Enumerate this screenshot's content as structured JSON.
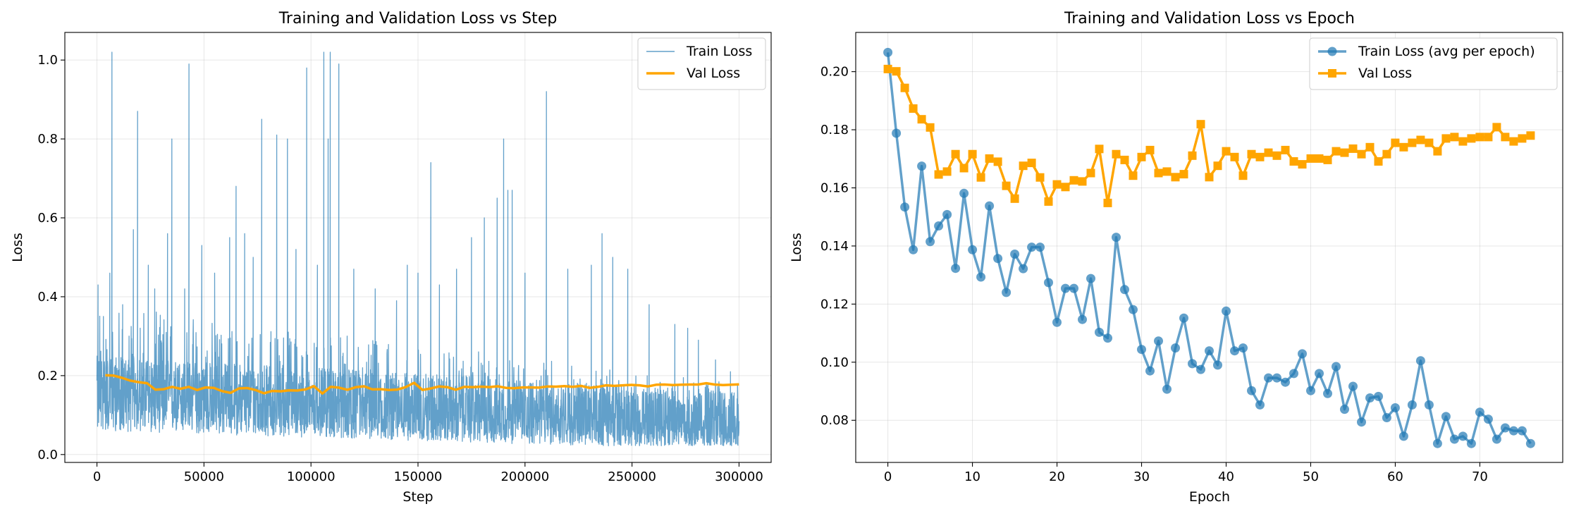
{
  "chart_data": [
    {
      "type": "line",
      "title": "Training and Validation Loss vs Step",
      "xlabel": "Step",
      "ylabel": "Loss",
      "xlim": [
        -15000,
        315000
      ],
      "ylim": [
        -0.02,
        1.07
      ],
      "xticks": [
        0,
        50000,
        100000,
        150000,
        200000,
        250000,
        300000
      ],
      "xtick_labels": [
        "0",
        "50000",
        "100000",
        "150000",
        "200000",
        "250000",
        "300000"
      ],
      "yticks": [
        0.0,
        0.2,
        0.4,
        0.6,
        0.8,
        1.0
      ],
      "ytick_labels": [
        "0.0",
        "0.2",
        "0.4",
        "0.6",
        "0.8",
        "1.0"
      ],
      "grid": true,
      "legend_position": "upper-right",
      "series": [
        {
          "name": "Train Loss",
          "color": "#1f77b4",
          "description": "noisy per-step training loss from step 0 to 300000, baseline decreasing from ~0.15 to ~0.07",
          "spikes": [
            [
              500,
              0.43
            ],
            [
              3000,
              0.35
            ],
            [
              6000,
              0.46
            ],
            [
              7000,
              1.02
            ],
            [
              12000,
              0.38
            ],
            [
              17000,
              0.57
            ],
            [
              19000,
              0.87
            ],
            [
              24000,
              0.48
            ],
            [
              27000,
              0.42
            ],
            [
              33000,
              0.56
            ],
            [
              35000,
              0.8
            ],
            [
              41000,
              0.42
            ],
            [
              43000,
              0.99
            ],
            [
              49000,
              0.53
            ],
            [
              55000,
              0.46
            ],
            [
              62000,
              0.55
            ],
            [
              65000,
              0.68
            ],
            [
              69000,
              0.56
            ],
            [
              73000,
              0.5
            ],
            [
              77000,
              0.85
            ],
            [
              84000,
              0.81
            ],
            [
              89000,
              0.8
            ],
            [
              93000,
              0.52
            ],
            [
              98000,
              0.98
            ],
            [
              103000,
              0.48
            ],
            [
              106000,
              1.02
            ],
            [
              108000,
              0.8
            ],
            [
              109000,
              1.02
            ],
            [
              113000,
              0.99
            ],
            [
              120000,
              0.47
            ],
            [
              130000,
              0.42
            ],
            [
              140000,
              0.39
            ],
            [
              145000,
              0.48
            ],
            [
              150000,
              0.46
            ],
            [
              156000,
              0.74
            ],
            [
              160000,
              0.43
            ],
            [
              168000,
              0.47
            ],
            [
              175000,
              0.55
            ],
            [
              181000,
              0.6
            ],
            [
              187000,
              0.65
            ],
            [
              190000,
              0.8
            ],
            [
              192000,
              0.67
            ],
            [
              194000,
              0.67
            ],
            [
              200000,
              0.46
            ],
            [
              210000,
              0.92
            ],
            [
              220000,
              0.47
            ],
            [
              231000,
              0.48
            ],
            [
              236000,
              0.56
            ],
            [
              241000,
              0.5
            ],
            [
              248000,
              0.47
            ],
            [
              258000,
              0.38
            ],
            [
              270000,
              0.33
            ],
            [
              276000,
              0.32
            ],
            [
              281000,
              0.29
            ],
            [
              289000,
              0.24
            ],
            [
              296000,
              0.21
            ]
          ]
        },
        {
          "name": "Val Loss",
          "color": "#ffa500",
          "x": [
            3900,
            7800,
            11700,
            15600,
            19500,
            23400,
            27300,
            31200,
            35100,
            39000,
            42900,
            46800,
            50700,
            54600,
            58500,
            62400,
            66300,
            70200,
            74100,
            78000,
            81900,
            85800,
            89700,
            93600,
            97500,
            101400,
            105300,
            109200,
            113100,
            117000,
            120900,
            124800,
            128700,
            132600,
            136500,
            140400,
            144300,
            148200,
            152100,
            156000,
            159900,
            163800,
            167700,
            171600,
            175500,
            179400,
            183300,
            187200,
            191100,
            195000,
            198900,
            202800,
            206700,
            210600,
            214500,
            218400,
            222300,
            226200,
            230100,
            234000,
            237900,
            241800,
            245700,
            249600,
            253500,
            257400,
            261300,
            265200,
            269100,
            273000,
            276900,
            280800,
            284700,
            288600,
            292500,
            296400,
            300000
          ],
          "y": [
            0.2009,
            0.2001,
            0.1944,
            0.1873,
            0.1836,
            0.1808,
            0.1646,
            0.1656,
            0.1716,
            0.1668,
            0.1716,
            0.1636,
            0.1701,
            0.169,
            0.1607,
            0.1563,
            0.1676,
            0.1686,
            0.1636,
            0.1553,
            0.1612,
            0.1603,
            0.1626,
            0.1622,
            0.1651,
            0.1734,
            0.1548,
            0.1716,
            0.1696,
            0.1642,
            0.1706,
            0.173,
            0.1651,
            0.1656,
            0.1637,
            0.1647,
            0.1711,
            0.1819,
            0.1637,
            0.1676,
            0.1726,
            0.1706,
            0.1642,
            0.1716,
            0.1706,
            0.1721,
            0.1711,
            0.173,
            0.1691,
            0.1681,
            0.1701,
            0.1701,
            0.1696,
            0.1726,
            0.1721,
            0.1735,
            0.1716,
            0.174,
            0.1691,
            0.1716,
            0.1755,
            0.174,
            0.1755,
            0.1765,
            0.1755,
            0.1726,
            0.177,
            0.1775,
            0.176,
            0.177,
            0.1775,
            0.1775,
            0.1809,
            0.1775,
            0.176,
            0.177,
            0.178
          ]
        }
      ]
    },
    {
      "type": "line",
      "title": "Training and Validation Loss vs Epoch",
      "xlabel": "Epoch",
      "ylabel": "Loss",
      "xlim": [
        -3.8,
        79.8
      ],
      "ylim": [
        0.0655,
        0.2135
      ],
      "xticks": [
        0,
        10,
        20,
        30,
        40,
        50,
        60,
        70
      ],
      "xtick_labels": [
        "0",
        "10",
        "20",
        "30",
        "40",
        "50",
        "60",
        "70"
      ],
      "yticks": [
        0.08,
        0.1,
        0.12,
        0.14,
        0.16,
        0.18,
        0.2
      ],
      "ytick_labels": [
        "0.08",
        "0.10",
        "0.12",
        "0.14",
        "0.16",
        "0.18",
        "0.20"
      ],
      "grid": true,
      "legend_position": "upper-right",
      "series": [
        {
          "name": "Train Loss (avg per epoch)",
          "color": "#1f77b4",
          "marker": "circle",
          "x": [
            0,
            1,
            2,
            3,
            4,
            5,
            6,
            7,
            8,
            9,
            10,
            11,
            12,
            13,
            14,
            15,
            16,
            17,
            18,
            19,
            20,
            21,
            22,
            23,
            24,
            25,
            26,
            27,
            28,
            29,
            30,
            31,
            32,
            33,
            34,
            35,
            36,
            37,
            38,
            39,
            40,
            41,
            42,
            43,
            44,
            45,
            46,
            47,
            48,
            49,
            50,
            51,
            52,
            53,
            54,
            55,
            56,
            57,
            58,
            59,
            60,
            61,
            62,
            63,
            64,
            65,
            66,
            67,
            68,
            69,
            70,
            71,
            72,
            73,
            74,
            75,
            76
          ],
          "y": [
            0.2066,
            0.1788,
            0.1534,
            0.1387,
            0.1675,
            0.1415,
            0.1469,
            0.1508,
            0.1323,
            0.1581,
            0.1387,
            0.1293,
            0.1538,
            0.1357,
            0.124,
            0.1372,
            0.1322,
            0.1396,
            0.1396,
            0.1274,
            0.1137,
            0.1254,
            0.1254,
            0.1147,
            0.1288,
            0.1103,
            0.1083,
            0.143,
            0.125,
            0.1181,
            0.1044,
            0.097,
            0.1073,
            0.0907,
            0.1049,
            0.1152,
            0.0995,
            0.0975,
            0.1039,
            0.099,
            0.1176,
            0.1039,
            0.1049,
            0.0902,
            0.0853,
            0.0946,
            0.0946,
            0.0931,
            0.0961,
            0.1029,
            0.0902,
            0.0961,
            0.0892,
            0.0985,
            0.0838,
            0.0917,
            0.0794,
            0.0877,
            0.0882,
            0.0809,
            0.0843,
            0.0745,
            0.0853,
            0.1005,
            0.0853,
            0.072,
            0.0813,
            0.0735,
            0.0745,
            0.072,
            0.0828,
            0.0804,
            0.0735,
            0.0774,
            0.0764,
            0.0764,
            0.072
          ]
        },
        {
          "name": "Val Loss",
          "color": "#ffa500",
          "marker": "square",
          "x": [
            0,
            1,
            2,
            3,
            4,
            5,
            6,
            7,
            8,
            9,
            10,
            11,
            12,
            13,
            14,
            15,
            16,
            17,
            18,
            19,
            20,
            21,
            22,
            23,
            24,
            25,
            26,
            27,
            28,
            29,
            30,
            31,
            32,
            33,
            34,
            35,
            36,
            37,
            38,
            39,
            40,
            41,
            42,
            43,
            44,
            45,
            46,
            47,
            48,
            49,
            50,
            51,
            52,
            53,
            54,
            55,
            56,
            57,
            58,
            59,
            60,
            61,
            62,
            63,
            64,
            65,
            66,
            67,
            68,
            69,
            70,
            71,
            72,
            73,
            74,
            75,
            76
          ],
          "y": [
            0.2009,
            0.2001,
            0.1944,
            0.1873,
            0.1836,
            0.1808,
            0.1646,
            0.1656,
            0.1716,
            0.1668,
            0.1716,
            0.1636,
            0.1701,
            0.169,
            0.1607,
            0.1563,
            0.1676,
            0.1686,
            0.1636,
            0.1553,
            0.1612,
            0.1603,
            0.1626,
            0.1622,
            0.1651,
            0.1734,
            0.1548,
            0.1716,
            0.1696,
            0.1642,
            0.1706,
            0.173,
            0.1651,
            0.1656,
            0.1637,
            0.1647,
            0.1711,
            0.1819,
            0.1637,
            0.1676,
            0.1726,
            0.1706,
            0.1642,
            0.1716,
            0.1706,
            0.1721,
            0.1711,
            0.173,
            0.1691,
            0.1681,
            0.1701,
            0.1701,
            0.1696,
            0.1726,
            0.1721,
            0.1735,
            0.1716,
            0.174,
            0.1691,
            0.1716,
            0.1755,
            0.174,
            0.1755,
            0.1765,
            0.1755,
            0.1726,
            0.177,
            0.1775,
            0.176,
            0.177,
            0.1775,
            0.1775,
            0.1809,
            0.1775,
            0.176,
            0.177,
            0.178
          ]
        }
      ]
    }
  ]
}
